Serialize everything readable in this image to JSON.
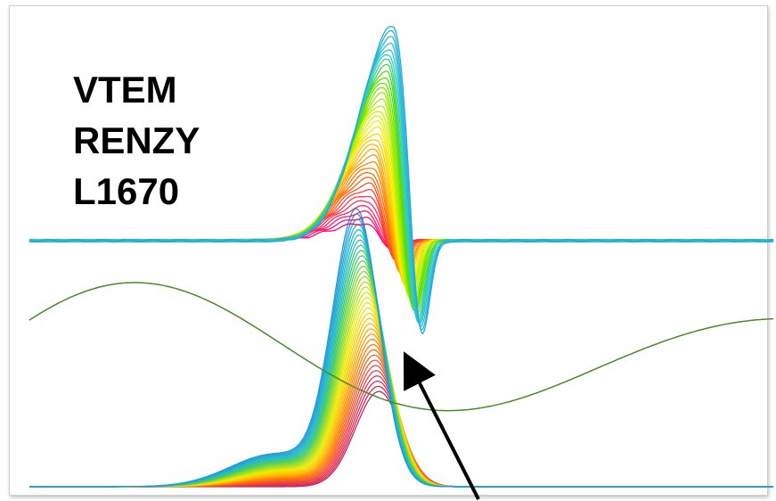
{
  "annotation": {
    "lines": [
      "VTEM",
      "RENZY",
      "L1670"
    ]
  },
  "colors": {
    "green_curve": "#4a8a2a",
    "arrow": "#000000",
    "frame_border": "#cfcfcf"
  },
  "chart_data": {
    "type": "line",
    "title": "",
    "xlabel": "",
    "ylabel": "",
    "grid": false,
    "legend": "none",
    "x_range": [
      0,
      1
    ],
    "series": [
      {
        "group": "upper_anomaly_profiles",
        "count": 36,
        "baseline": 0.0,
        "peak_min": 0.08,
        "peak_max": 1.0,
        "peak_center_first": 0.45,
        "peak_center_last": 0.49,
        "color_ramp": [
          "#ff0077",
          "#ff3355",
          "#ff6600",
          "#ffaa00",
          "#ffee00",
          "#aaee00",
          "#55dd00",
          "#33cccc",
          "#22aadd"
        ]
      },
      {
        "group": "lower_anomaly_profiles",
        "count": 36,
        "baseline": 0.0,
        "peak_min": 0.35,
        "peak_max": 1.0,
        "peak_center_first": 0.47,
        "peak_center_last": 0.44,
        "color_ramp": [
          "#cc2266",
          "#ee4444",
          "#ff7700",
          "#ffbb00",
          "#eeee00",
          "#99dd22",
          "#44cc66",
          "#22bbcc",
          "#2299dd"
        ]
      },
      {
        "group": "green_reference_profile",
        "count": 1,
        "shape": "sinusoidal"
      }
    ]
  }
}
